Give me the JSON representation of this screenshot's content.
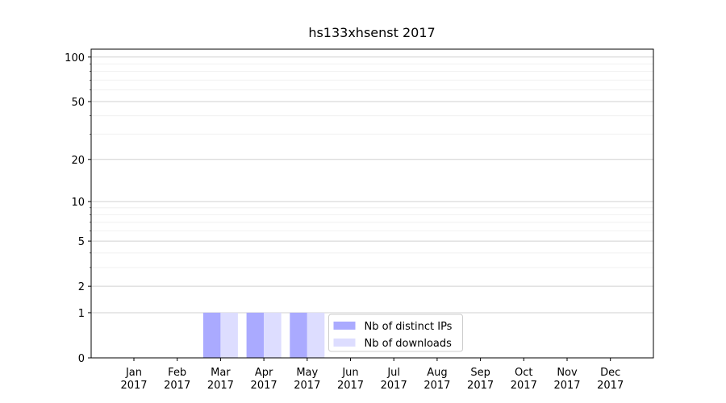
{
  "chart_data": {
    "type": "bar",
    "title": "hs133xhsenst 2017",
    "categories": [
      "Jan 2017",
      "Feb 2017",
      "Mar 2017",
      "Apr 2017",
      "May 2017",
      "Jun 2017",
      "Jul 2017",
      "Aug 2017",
      "Sep 2017",
      "Oct 2017",
      "Nov 2017",
      "Dec 2017"
    ],
    "series": [
      {
        "name": "Nb of distinct IPs",
        "color": "#aaaaff",
        "values": [
          0,
          0,
          1,
          1,
          1,
          0,
          0,
          0,
          0,
          0,
          0,
          0
        ]
      },
      {
        "name": "Nb of downloads",
        "color": "#ddddff",
        "values": [
          0,
          0,
          1,
          1,
          1,
          0,
          0,
          0,
          0,
          0,
          0,
          0
        ]
      }
    ],
    "yscale": "log1p",
    "ylim": [
      0,
      113
    ],
    "yticks": [
      0,
      1,
      2,
      5,
      10,
      20,
      50,
      100
    ],
    "yminorticks": [
      3,
      4,
      6,
      7,
      8,
      9,
      30,
      40,
      60,
      70,
      80,
      90
    ],
    "grid": true,
    "legend": "lower center"
  }
}
